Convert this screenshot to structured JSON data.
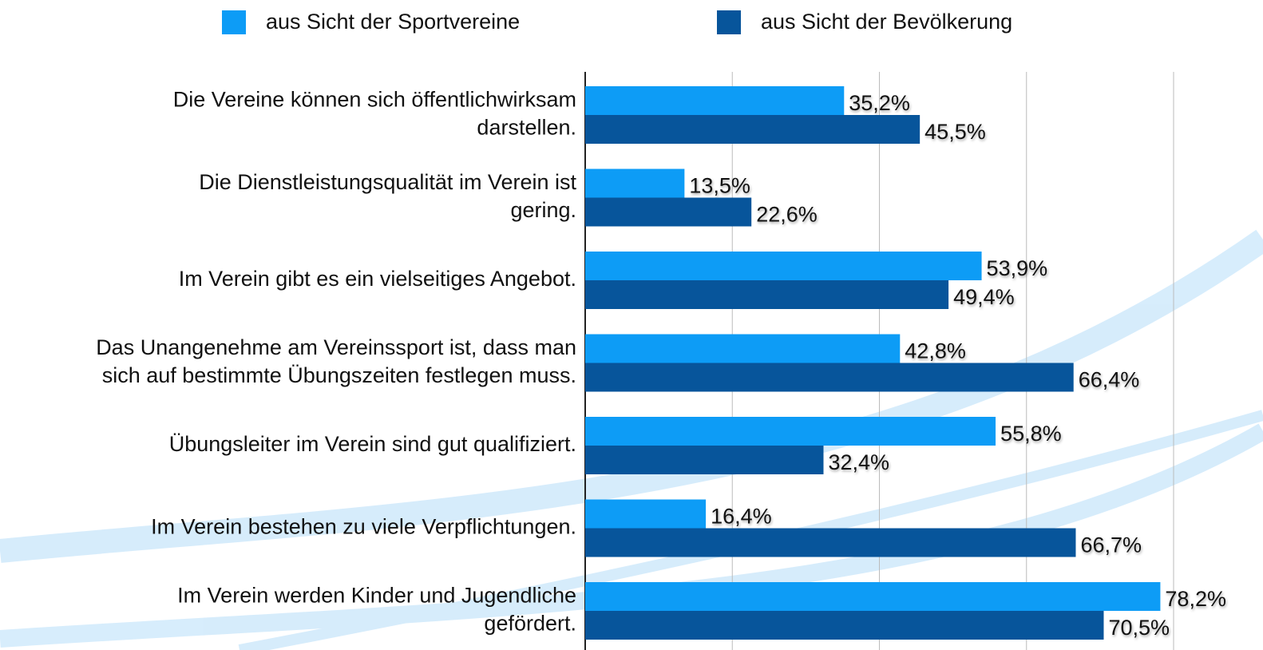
{
  "chart_data": {
    "type": "barh",
    "categories": [
      "Die Vereine können sich öffentlichwirksam\ndarstellen.",
      "Die Dienstleistungsqualität im Verein ist\ngering.",
      "Im Verein gibt es ein vielseitiges Angebot.",
      "Das Unangenehme am Vereinssport ist, dass man\nsich auf bestimmte Übungszeiten festlegen muss.",
      "Übungsleiter im Verein sind gut qualifiziert.",
      "Im Verein bestehen zu viele Verpflichtungen.",
      "Im Verein werden Kinder und Jugendliche\ngefördert."
    ],
    "series": [
      {
        "name": "aus Sicht der Sportvereine",
        "color": "#0d9cf6",
        "values": [
          35.2,
          13.5,
          53.9,
          42.8,
          55.8,
          16.4,
          78.2
        ],
        "value_labels": [
          "35,2%",
          "13,5%",
          "53,9%",
          "42,8%",
          "55,8%",
          "16,4%",
          "78,2%"
        ]
      },
      {
        "name": "aus Sicht der Bevölkerung",
        "color": "#07559b",
        "values": [
          45.5,
          22.6,
          49.4,
          66.4,
          32.4,
          66.7,
          70.5
        ],
        "value_labels": [
          "45,5%",
          "22,6%",
          "49,4%",
          "66,4%",
          "32,4%",
          "66,7%",
          "70,5%"
        ]
      }
    ],
    "xlim": [
      0,
      80
    ],
    "xticks": [
      0,
      20,
      40,
      60,
      80
    ],
    "show_tick_labels": false,
    "grid": true
  }
}
